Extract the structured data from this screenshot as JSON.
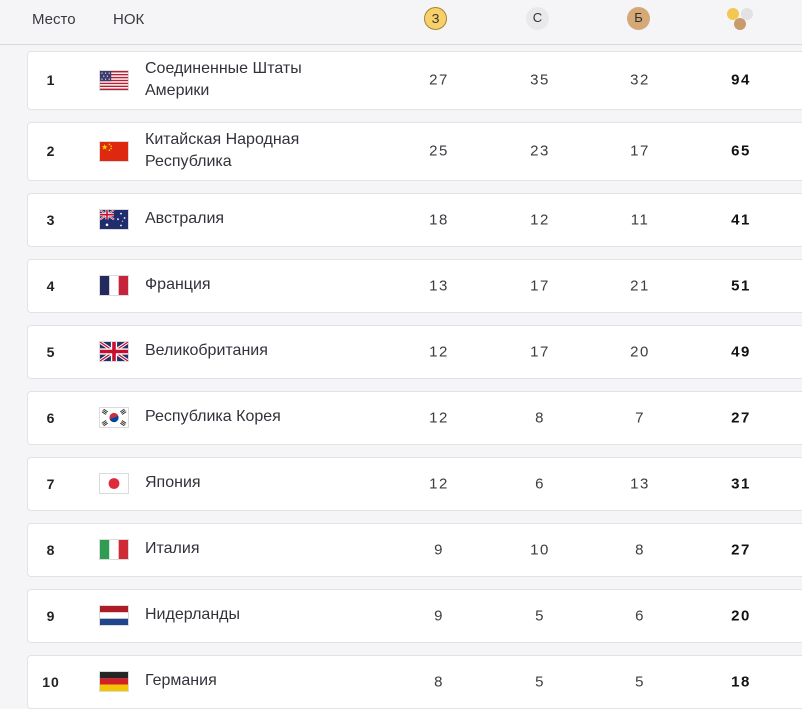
{
  "header": {
    "place_label": "Место",
    "noc_label": "НОК",
    "gold_letter": "З",
    "silver_letter": "С",
    "bronze_letter": "Б"
  },
  "medal_colors": {
    "gold": "#f7d06c",
    "gold_border": "#a8842c",
    "silver": "#e9e9eb",
    "bronze": "#d5a878"
  },
  "rows": [
    {
      "rank": "1",
      "flag": "us",
      "country": "Соединенные Штаты Америки",
      "gold": "27",
      "silver": "35",
      "bronze": "32",
      "total": "94"
    },
    {
      "rank": "2",
      "flag": "cn",
      "country": "Китайская Народная Республика",
      "gold": "25",
      "silver": "23",
      "bronze": "17",
      "total": "65"
    },
    {
      "rank": "3",
      "flag": "au",
      "country": "Австралия",
      "gold": "18",
      "silver": "12",
      "bronze": "11",
      "total": "41"
    },
    {
      "rank": "4",
      "flag": "fr",
      "country": "Франция",
      "gold": "13",
      "silver": "17",
      "bronze": "21",
      "total": "51"
    },
    {
      "rank": "5",
      "flag": "gb",
      "country": "Великобритания",
      "gold": "12",
      "silver": "17",
      "bronze": "20",
      "total": "49"
    },
    {
      "rank": "6",
      "flag": "kr",
      "country": "Республика Корея",
      "gold": "12",
      "silver": "8",
      "bronze": "7",
      "total": "27"
    },
    {
      "rank": "7",
      "flag": "jp",
      "country": "Япония",
      "gold": "12",
      "silver": "6",
      "bronze": "13",
      "total": "31"
    },
    {
      "rank": "8",
      "flag": "it",
      "country": "Италия",
      "gold": "9",
      "silver": "10",
      "bronze": "8",
      "total": "27"
    },
    {
      "rank": "9",
      "flag": "nl",
      "country": "Нидерланды",
      "gold": "9",
      "silver": "5",
      "bronze": "6",
      "total": "20"
    },
    {
      "rank": "10",
      "flag": "de",
      "country": "Германия",
      "gold": "8",
      "silver": "5",
      "bronze": "5",
      "total": "18"
    }
  ]
}
